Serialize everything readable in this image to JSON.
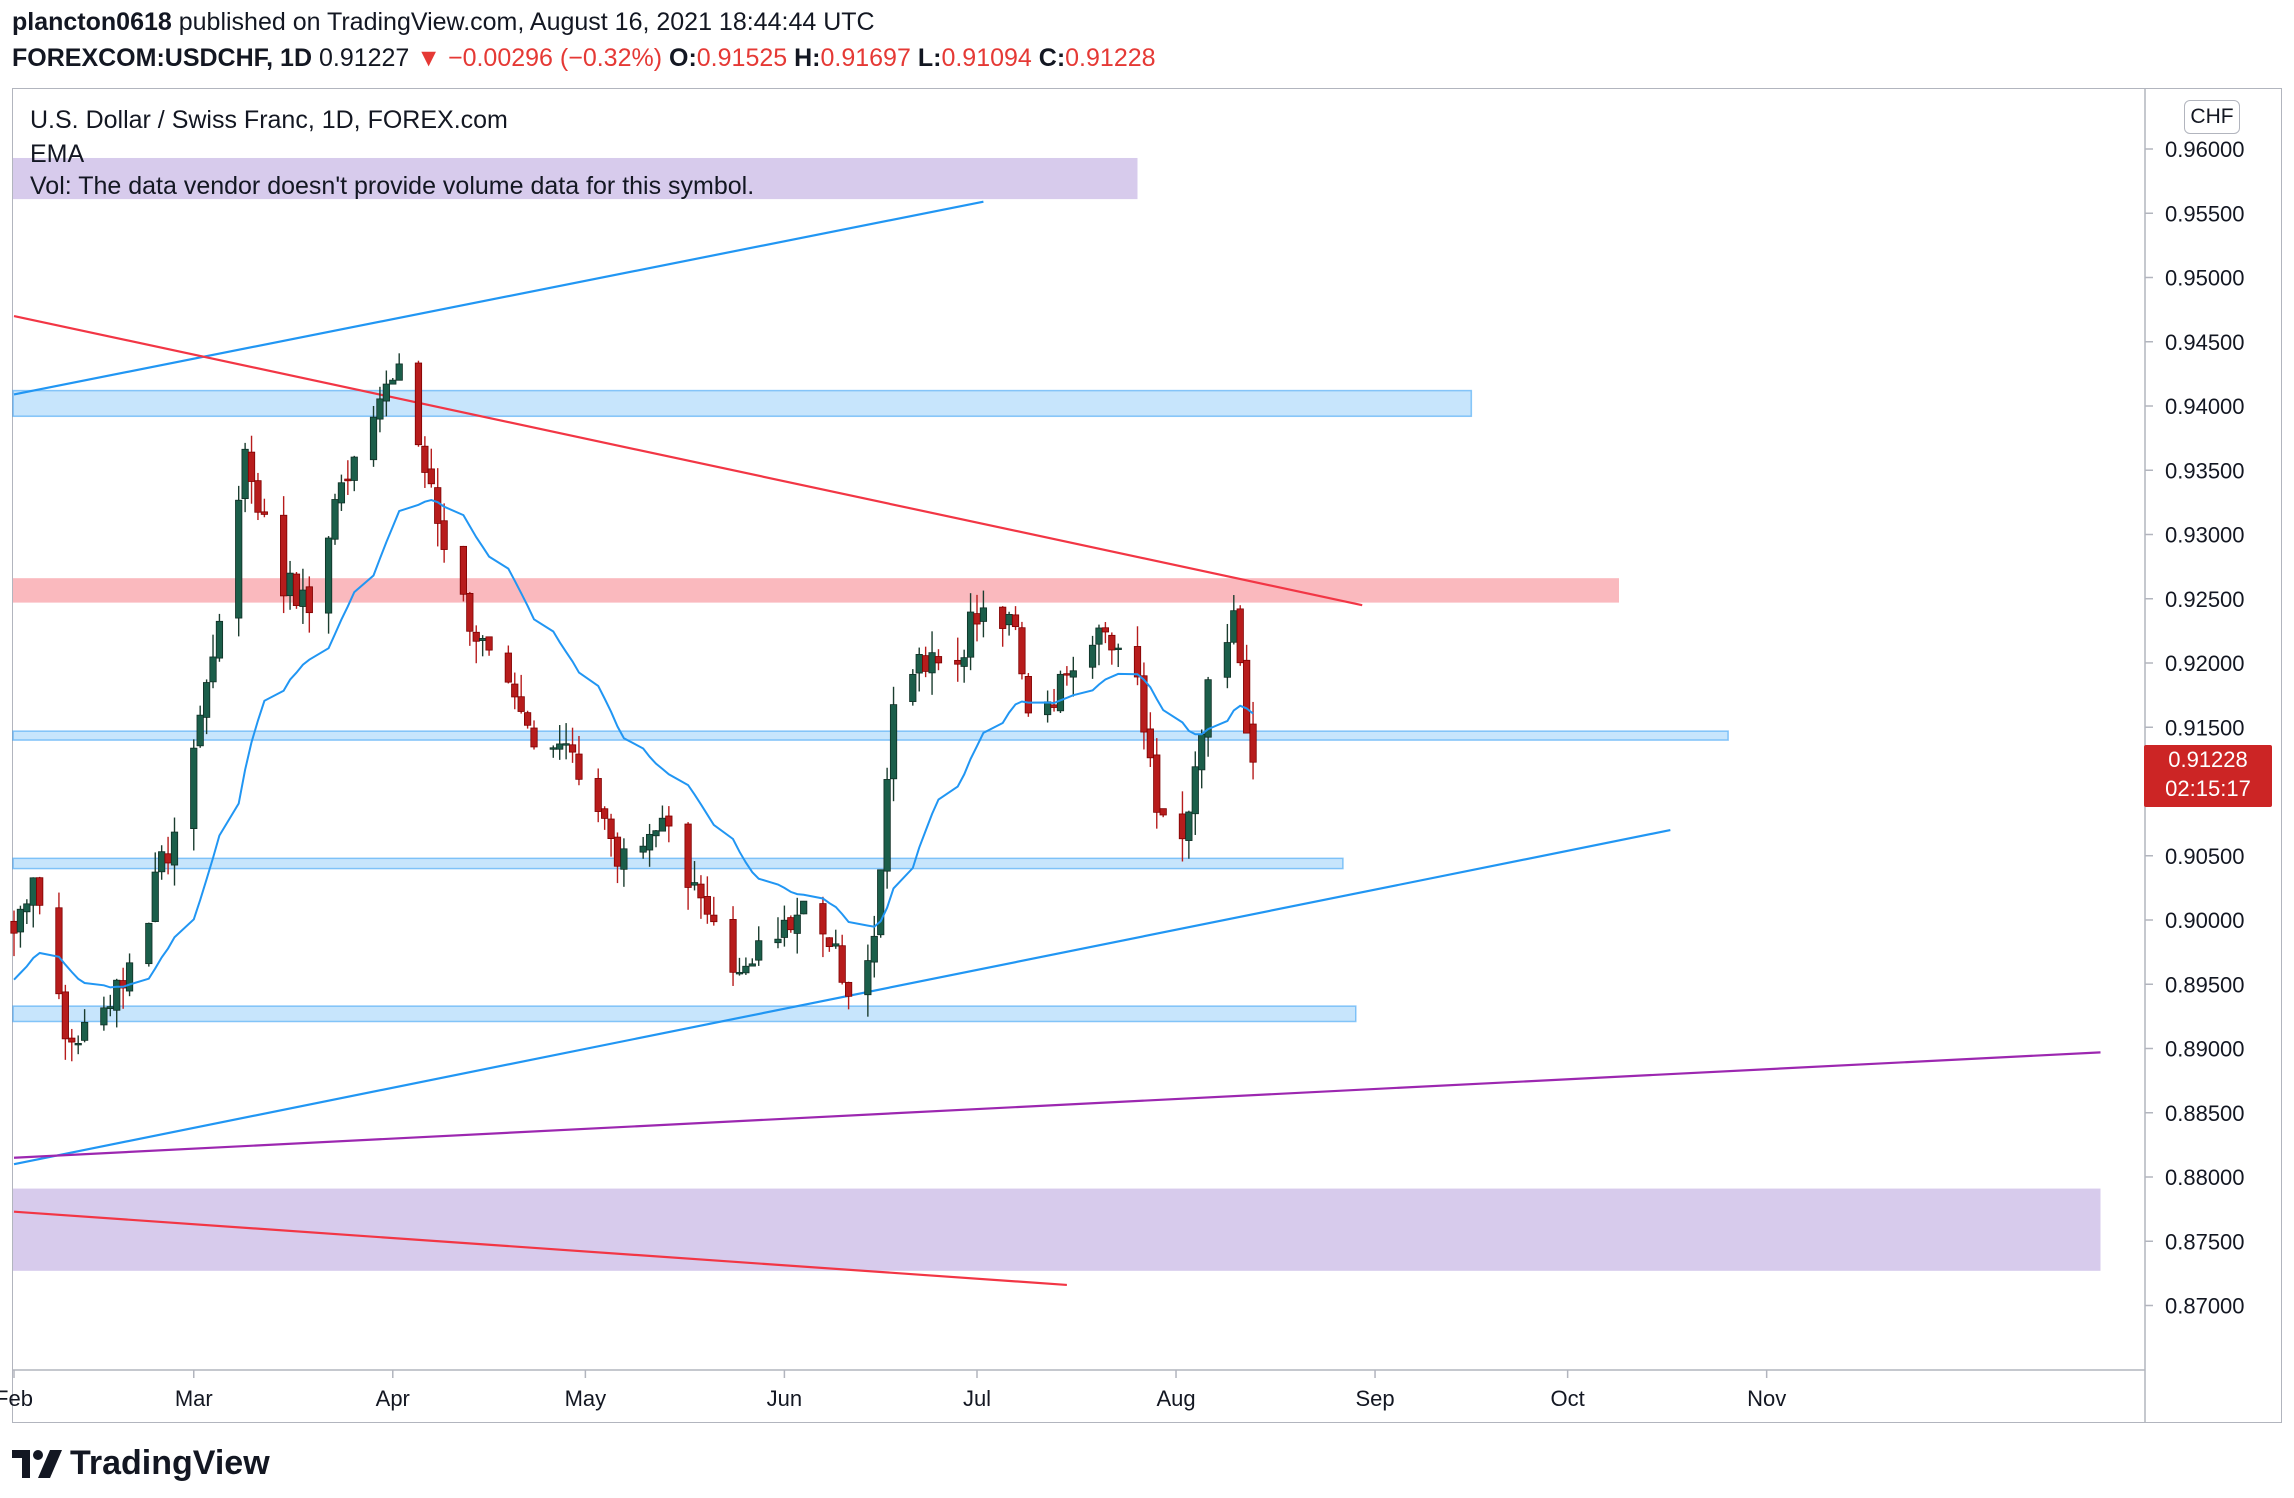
{
  "header": {
    "publisher": "plancton0618",
    "published_text": "published on TradingView.com, August 16, 2021 18:44:44 UTC",
    "symbol": "FOREXCOM:USDCHF, 1D",
    "last": "0.91227",
    "change": "▼ −0.00296 (−0.32%)",
    "o_label": "O:",
    "o_value": "0.91525",
    "h_label": "H:",
    "h_value": "0.91697",
    "l_label": "L:",
    "l_value": "0.91094",
    "c_label": "C:",
    "c_value": "0.91228"
  },
  "legend": {
    "title": "U.S. Dollar / Swiss Franc, 1D, FOREX.com",
    "ema": "EMA",
    "vol": "Vol: The data vendor doesn't provide volume data for this symbol."
  },
  "price_axis": {
    "currency": "CHF"
  },
  "last_price": {
    "price": "0.91228",
    "countdown": "02:15:17"
  },
  "footer": {
    "brand": "TradingView"
  },
  "colors": {
    "up": "#26a69a",
    "up_body": "#1b5e4a",
    "down": "#b71c1c",
    "ema": "#2196f3",
    "trend_blue": "#2196f3",
    "trend_red": "#f23645",
    "trend_purple": "#9c27b0",
    "zone_blue": "rgba(33,150,243,0.25)",
    "zone_red": "rgba(242,54,69,0.35)",
    "zone_purple": "rgba(149,117,205,0.38)"
  },
  "chart_data": {
    "type": "candlestick",
    "title": "U.S. Dollar / Swiss Franc, 1D, FOREX.com",
    "symbol": "USDCHF",
    "interval": "1D",
    "ylim": [
      0.8657,
      0.9616
    ],
    "y_ticks": [
      "0.96000",
      "0.95500",
      "0.95000",
      "0.94500",
      "0.94000",
      "0.93500",
      "0.93000",
      "0.92500",
      "0.92000",
      "0.91500",
      "0.91000",
      "0.90500",
      "0.90000",
      "0.89500",
      "0.89000",
      "0.88500",
      "0.88000",
      "0.87500",
      "0.87000"
    ],
    "x_months": [
      "Feb",
      "Mar",
      "Apr",
      "May",
      "Jun",
      "Jul",
      "Aug",
      "Sep",
      "Oct",
      "Nov"
    ],
    "x_month_days": [
      0,
      28,
      59,
      89,
      120,
      150,
      181,
      212,
      242,
      273
    ],
    "day_domain": [
      0,
      311
    ],
    "ohlc_anchors": [
      {
        "day": 0,
        "close": 0.899
      },
      {
        "day": 3,
        "close": 0.904
      },
      {
        "day": 8,
        "close": 0.8905
      },
      {
        "day": 12,
        "close": 0.8915
      },
      {
        "day": 18,
        "close": 0.8965
      },
      {
        "day": 25,
        "close": 0.907
      },
      {
        "day": 30,
        "close": 0.918
      },
      {
        "day": 36,
        "close": 0.9365
      },
      {
        "day": 41,
        "close": 0.927
      },
      {
        "day": 46,
        "close": 0.924
      },
      {
        "day": 50,
        "close": 0.932
      },
      {
        "day": 55,
        "close": 0.94
      },
      {
        "day": 60,
        "close": 0.942
      },
      {
        "day": 63,
        "close": 0.937
      },
      {
        "day": 68,
        "close": 0.927
      },
      {
        "day": 74,
        "close": 0.92
      },
      {
        "day": 80,
        "close": 0.915
      },
      {
        "day": 85,
        "close": 0.914
      },
      {
        "day": 90,
        "close": 0.91
      },
      {
        "day": 96,
        "close": 0.903
      },
      {
        "day": 100,
        "close": 0.908
      },
      {
        "day": 105,
        "close": 0.9035
      },
      {
        "day": 111,
        "close": 0.8965
      },
      {
        "day": 118,
        "close": 0.899
      },
      {
        "day": 124,
        "close": 0.902
      },
      {
        "day": 130,
        "close": 0.895
      },
      {
        "day": 134,
        "close": 0.899
      },
      {
        "day": 137,
        "close": 0.917
      },
      {
        "day": 141,
        "close": 0.92
      },
      {
        "day": 146,
        "close": 0.919
      },
      {
        "day": 151,
        "close": 0.9255
      },
      {
        "day": 156,
        "close": 0.923
      },
      {
        "day": 158,
        "close": 0.916
      },
      {
        "day": 163,
        "close": 0.918
      },
      {
        "day": 168,
        "close": 0.9215
      },
      {
        "day": 174,
        "close": 0.921
      },
      {
        "day": 178,
        "close": 0.908
      },
      {
        "day": 182,
        "close": 0.905
      },
      {
        "day": 186,
        "close": 0.918
      },
      {
        "day": 190,
        "close": 0.923
      },
      {
        "day": 193,
        "close": 0.9122
      }
    ],
    "ema_period": 20,
    "zones": [
      {
        "name": "zone-top-purple",
        "from": 0.9593,
        "to": 0.9561,
        "day_end": 175,
        "color": "purple"
      },
      {
        "name": "zone-blue-094",
        "from": 0.9412,
        "to": 0.9392,
        "day_end": 227,
        "color": "blue"
      },
      {
        "name": "zone-red-0925",
        "from": 0.9266,
        "to": 0.9247,
        "day_end": 250,
        "color": "red"
      },
      {
        "name": "zone-blue-0915",
        "from": 0.9147,
        "to": 0.914,
        "day_end": 267,
        "color": "blue"
      },
      {
        "name": "zone-blue-0905",
        "from": 0.9048,
        "to": 0.904,
        "day_end": 207,
        "color": "blue"
      },
      {
        "name": "zone-blue-0893",
        "from": 0.8933,
        "to": 0.8921,
        "day_end": 209,
        "color": "blue"
      },
      {
        "name": "zone-bottom-purple",
        "from": 0.8791,
        "to": 0.8727,
        "day_end": 325,
        "color": "purple"
      }
    ],
    "trendlines": [
      {
        "name": "upper-blue-channel",
        "p1": [
          0,
          0.9409
        ],
        "p2": [
          151,
          0.9559
        ],
        "color": "blue"
      },
      {
        "name": "red-descending",
        "p1": [
          0,
          0.947
        ],
        "p2": [
          210,
          0.9245
        ],
        "color": "red"
      },
      {
        "name": "lower-blue-rising",
        "p1": [
          0,
          0.881
        ],
        "p2": [
          258,
          0.907
        ],
        "color": "blue"
      },
      {
        "name": "purple-rising",
        "p1": [
          0,
          0.8815
        ],
        "p2": [
          325,
          0.8897
        ],
        "color": "purple"
      },
      {
        "name": "red-lower-descending",
        "p1": [
          0,
          0.8773
        ],
        "p2": [
          164,
          0.8716
        ],
        "color": "red"
      }
    ]
  }
}
